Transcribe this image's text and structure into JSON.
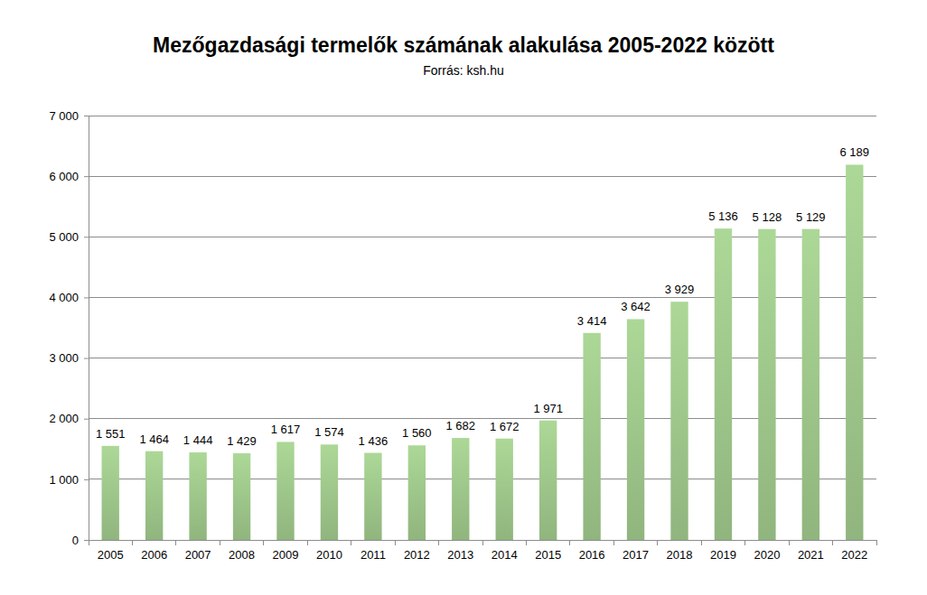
{
  "chart_data": {
    "type": "bar",
    "title": "Mezőgazdasági termelők számának alakulása 2005-2022 között",
    "subtitle": "Forrás: ksh.hu",
    "categories": [
      "2005",
      "2006",
      "2007",
      "2008",
      "2009",
      "2010",
      "2011",
      "2012",
      "2013",
      "2014",
      "2015",
      "2016",
      "2017",
      "2018",
      "2019",
      "2020",
      "2021",
      "2022"
    ],
    "values": [
      1551,
      1464,
      1444,
      1429,
      1617,
      1574,
      1436,
      1560,
      1682,
      1672,
      1971,
      3414,
      3642,
      3929,
      5136,
      5128,
      5129,
      6189
    ],
    "value_labels": [
      "1 551",
      "1 464",
      "1 444",
      "1 429",
      "1 617",
      "1 574",
      "1 436",
      "1 560",
      "1 682",
      "1 672",
      "1 971",
      "3 414",
      "3 642",
      "3 929",
      "5 136",
      "5 128",
      "5 129",
      "6 189"
    ],
    "color": "#9dc68a",
    "ylim": [
      0,
      7000
    ],
    "yticks": [
      0,
      {
        "value": 1000,
        "label": "1 000"
      },
      {
        "value": 2000,
        "label": "2 000"
      },
      {
        "value": 3000,
        "label": "3 000"
      },
      {
        "value": 4000,
        "label": "4 000"
      },
      {
        "value": 5000,
        "label": "5 000"
      },
      {
        "value": 6000,
        "label": "6 000"
      },
      {
        "value": 7000,
        "label": "7 000"
      }
    ],
    "grid": true,
    "data_labels": true
  }
}
